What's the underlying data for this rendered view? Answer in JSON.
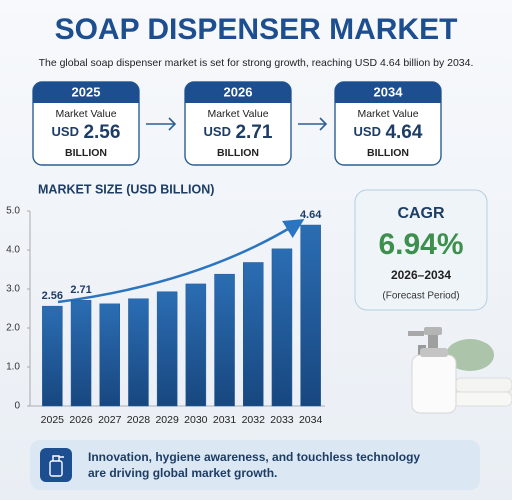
{
  "header": {
    "title": "SOAP DISPENSER MARKET",
    "subtitle": "The global soap dispenser market is set for strong growth, reaching USD 4.64 billion by 2034."
  },
  "cards": [
    {
      "year": "2025",
      "label": "Market Value",
      "currency": "USD",
      "value": 2.56,
      "unit": "BILLION"
    },
    {
      "year": "2026",
      "label": "Market Value",
      "currency": "USD",
      "value": 2.71,
      "unit": "BILLION"
    },
    {
      "year": "2034",
      "label": "Market Value",
      "currency": "USD",
      "value": 4.64,
      "unit": "BILLION"
    }
  ],
  "chart_data": {
    "type": "bar",
    "title": "MARKET SIZE (USD BILLION)",
    "categories": [
      "2025",
      "2026",
      "2027",
      "2028",
      "2029",
      "2030",
      "2031",
      "2032",
      "2033",
      "2034"
    ],
    "values": [
      2.56,
      2.71,
      2.62,
      2.75,
      2.93,
      3.13,
      3.38,
      3.68,
      4.03,
      4.64
    ],
    "value_labels": [
      "2.56",
      "2.71",
      null,
      null,
      null,
      null,
      null,
      null,
      null,
      "4.64"
    ],
    "color": "#1f5a9e",
    "ylim": [
      0,
      5
    ],
    "yticks": [
      0,
      {
        "value": 1,
        "label": "1.0"
      },
      {
        "value": 2,
        "label": "2.0"
      },
      {
        "value": 3,
        "label": "3.0"
      },
      {
        "value": 4,
        "label": "4.0"
      },
      {
        "value": 5,
        "label": "5.0"
      }
    ],
    "grid": false
  },
  "cagr": {
    "label": "CAGR",
    "value": "6.94%",
    "period": "2026–2034",
    "note": "(Forecast Period)"
  },
  "footer": {
    "lines": [
      "Innovation, hygiene awareness, and touchless technology",
      "are driving global market growth."
    ]
  }
}
